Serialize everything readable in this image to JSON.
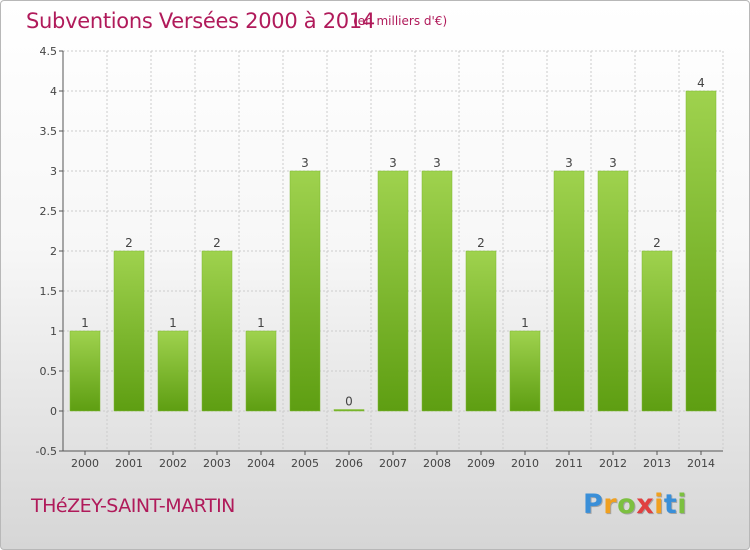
{
  "header": {
    "title": "Subventions Versées 2000 à 2014",
    "subtitle": "(en milliers d'€)"
  },
  "footer": {
    "commune": "THéZEY-SAINT-MARTIN",
    "logo_letters": [
      {
        "char": "P",
        "color": "#3a8fd8"
      },
      {
        "char": "r",
        "color": "#f0a020"
      },
      {
        "char": "o",
        "color": "#7cc040"
      },
      {
        "char": "x",
        "color": "#e04040"
      },
      {
        "char": "i",
        "color": "#f0a020"
      },
      {
        "char": "t",
        "color": "#3a8fd8"
      },
      {
        "char": "i",
        "color": "#7cc040"
      }
    ]
  },
  "colors": {
    "title": "#b01a5a",
    "bar_light": "#9fd24e",
    "bar_dark": "#5e9e12",
    "axis": "#555555",
    "grid": "#cccccc"
  },
  "chart_data": {
    "type": "bar",
    "categories": [
      "2000",
      "2001",
      "2002",
      "2003",
      "2004",
      "2005",
      "2006",
      "2007",
      "2008",
      "2009",
      "2010",
      "2011",
      "2012",
      "2013",
      "2014"
    ],
    "values": [
      1,
      2,
      1,
      2,
      1,
      3,
      0,
      3,
      3,
      2,
      1,
      3,
      3,
      2,
      4
    ],
    "data_labels": [
      "1",
      "2",
      "1",
      "2",
      "1",
      "3",
      "0",
      "3",
      "3",
      "2",
      "1",
      "3",
      "3",
      "2",
      "4"
    ],
    "y_ticks": [
      "-0.5",
      "0",
      "0.5",
      "1",
      "1.5",
      "2",
      "2.5",
      "3",
      "3.5",
      "4",
      "4.5"
    ],
    "y_tick_values": [
      -0.5,
      0,
      0.5,
      1,
      1.5,
      2,
      2.5,
      3,
      3.5,
      4,
      4.5
    ],
    "ylim": [
      -0.5,
      4.5
    ],
    "grid": true,
    "legend": "none"
  }
}
